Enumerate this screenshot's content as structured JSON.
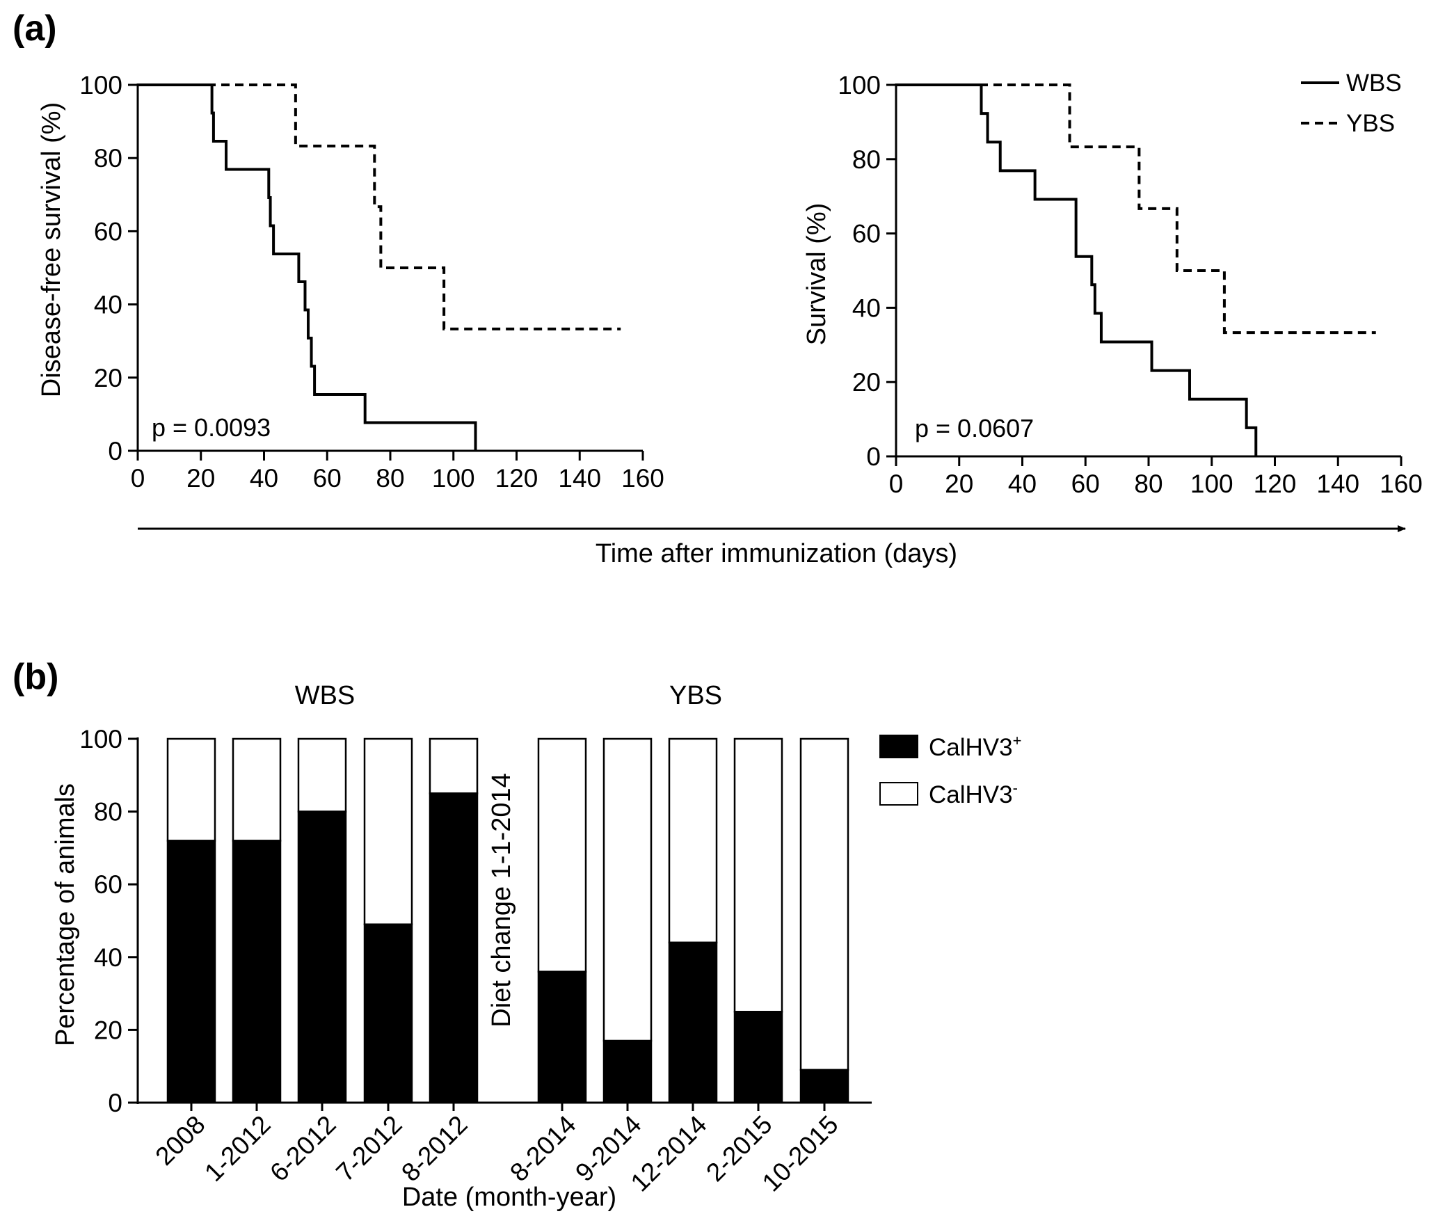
{
  "figure": {
    "panel_a_label": "(a)",
    "panel_b_label": "(b)",
    "shared_xlabel": "Time after immunization (days)"
  },
  "legend_a": {
    "items": [
      {
        "label": "WBS",
        "style": "solid"
      },
      {
        "label": "YBS",
        "style": "dashed"
      }
    ]
  },
  "legend_b": {
    "items": [
      {
        "label": "CalHV3",
        "sup": "+",
        "fill": "#000000"
      },
      {
        "label": "CalHV3",
        "sup": "-",
        "fill": "#ffffff"
      }
    ]
  },
  "chart_data": [
    {
      "type": "line",
      "subtype": "kaplan-meier step",
      "ylabel": "Disease-free survival (%)",
      "xlim": [
        0,
        160
      ],
      "ylim": [
        0,
        100
      ],
      "xticks": [
        0,
        20,
        40,
        60,
        80,
        100,
        120,
        140,
        160
      ],
      "yticks": [
        0,
        20,
        40,
        60,
        80,
        100
      ],
      "annotation": "p = 0.0093",
      "series": [
        {
          "name": "WBS",
          "style": "solid",
          "x": [
            0,
            23,
            23.5,
            24,
            28,
            41,
            41.5,
            42,
            43,
            50,
            51,
            53,
            54,
            55,
            56,
            72,
            107
          ],
          "y": [
            100,
            100,
            92.3,
            84.6,
            76.9,
            76.9,
            69.2,
            61.5,
            53.8,
            53.8,
            46.2,
            38.5,
            30.8,
            23.1,
            15.4,
            7.7,
            0
          ],
          "end_x": 107
        },
        {
          "name": "YBS",
          "style": "dashed",
          "x": [
            0,
            50,
            75,
            77,
            97
          ],
          "y": [
            100,
            83.3,
            66.7,
            50,
            33.3
          ],
          "end_x": 153
        }
      ]
    },
    {
      "type": "line",
      "subtype": "kaplan-meier step",
      "ylabel": "Survival (%)",
      "xlim": [
        0,
        160
      ],
      "ylim": [
        0,
        100
      ],
      "xticks": [
        0,
        20,
        40,
        60,
        80,
        100,
        120,
        140,
        160
      ],
      "yticks": [
        0,
        20,
        40,
        60,
        80,
        100
      ],
      "annotation": "p = 0.0607",
      "series": [
        {
          "name": "WBS",
          "style": "solid",
          "x": [
            0,
            26,
            27,
            29,
            33,
            44,
            57,
            59,
            62,
            63,
            65,
            81,
            93,
            111,
            114
          ],
          "y": [
            100,
            100,
            92.3,
            84.6,
            76.9,
            69.2,
            53.8,
            53.8,
            46.2,
            38.5,
            30.8,
            23.1,
            15.4,
            7.7,
            0
          ],
          "end_x": 114
        },
        {
          "name": "YBS",
          "style": "dashed",
          "x": [
            0,
            55,
            77,
            89,
            104
          ],
          "y": [
            100,
            83.3,
            66.7,
            50,
            33.3
          ],
          "end_x": 152
        }
      ]
    },
    {
      "type": "bar",
      "subtype": "stacked percent",
      "ylabel": "Percentage of animals",
      "xlabel": "Date (month-year)",
      "ylim": [
        0,
        100
      ],
      "yticks": [
        0,
        20,
        40,
        60,
        80,
        100
      ],
      "groups": [
        {
          "title": "WBS",
          "categories": [
            "2008",
            "1-2012",
            "6-2012",
            "7-2012",
            "8-2012"
          ],
          "positive": [
            72,
            72,
            80,
            49,
            85
          ]
        },
        {
          "title": "YBS",
          "categories": [
            "8-2014",
            "9-2014",
            "12-2014",
            "2-2015",
            "10-2015"
          ],
          "positive": [
            36,
            17,
            44,
            25,
            9
          ]
        }
      ],
      "annotation": "Diet change 1-1-2014"
    }
  ]
}
